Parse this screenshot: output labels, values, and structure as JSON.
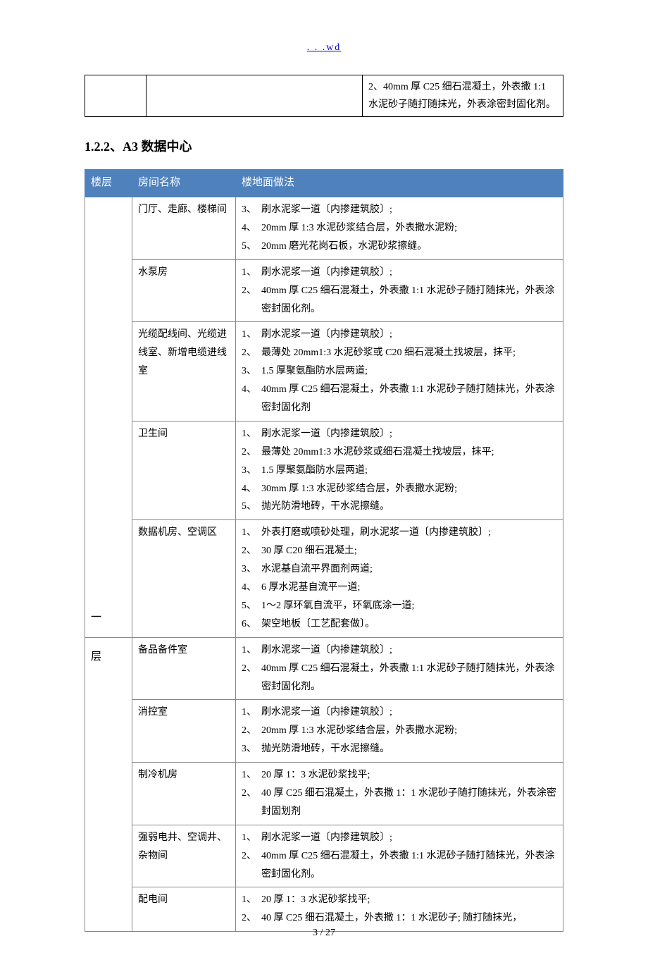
{
  "header_link": ". . .wd",
  "top_table_cell": "2、40mm 厚 C25 细石混凝土，外表撒 1:1 水泥砂子随打随抹光，外表涂密封固化剂。",
  "section_heading": "1.2.2、A3 数据中心",
  "table": {
    "header_bg": "#4f81bd",
    "header_fg": "#ffffff",
    "columns": [
      "楼层",
      "房间名称",
      "楼地面做法"
    ],
    "floor_label_top": "一",
    "floor_label_bottom": "层",
    "rows": [
      {
        "room": "门厅、走廊、楼梯间",
        "items": [
          {
            "n": "3、",
            "t": "刷水泥浆一道〔内掺建筑胶〕;"
          },
          {
            "n": "4、",
            "t": "20mm 厚 1:3 水泥砂浆结合层，外表撒水泥粉;"
          },
          {
            "n": "5、",
            "t": "20mm 磨光花岗石板，水泥砂浆擦缝。"
          }
        ]
      },
      {
        "room": "水泵房",
        "items": [
          {
            "n": "1、",
            "t": "刷水泥浆一道〔内掺建筑胶〕;"
          },
          {
            "n": "2、",
            "t": "40mm 厚 C25 细石混凝土，外表撒 1:1 水泥砂子随打随抹光，外表涂密封固化剂。"
          }
        ]
      },
      {
        "room": "光缆配线间、光缆进线室、新增电缆进线室",
        "items": [
          {
            "n": "1、",
            "t": "刷水泥浆一道〔内掺建筑胶〕;"
          },
          {
            "n": "2、",
            "t": "最薄处 20mm1:3 水泥砂浆或 C20 细石混凝土找坡层，抹平;"
          },
          {
            "n": "3、",
            "t": "1.5 厚聚氨酯防水层两道;"
          },
          {
            "n": "4、",
            "t": "40mm 厚 C25 细石混凝土，外表撒 1:1 水泥砂子随打随抹光，外表涂密封固化剂"
          }
        ]
      },
      {
        "room": "卫生间",
        "items": [
          {
            "n": "1、",
            "t": "刷水泥浆一道〔内掺建筑胶〕;"
          },
          {
            "n": "2、",
            "t": "最薄处 20mm1:3 水泥砂浆或细石混凝土找坡层，抹平;"
          },
          {
            "n": "3、",
            "t": "1.5 厚聚氨酯防水层两道;"
          },
          {
            "n": "4、",
            "t": "30mm 厚 1:3 水泥砂浆结合层，外表撒水泥粉;"
          },
          {
            "n": "5、",
            "t": "抛光防滑地砖，干水泥擦缝。"
          }
        ]
      },
      {
        "room": "数据机房、空调区",
        "items": [
          {
            "n": "1、",
            "t": "外表打磨或喷砂处理，刷水泥浆一道〔内掺建筑胶〕;"
          },
          {
            "n": "2、",
            "t": "30 厚 C20 细石混凝土;"
          },
          {
            "n": "3、",
            "t": "水泥基自流平界面剂两道;"
          },
          {
            "n": "4、",
            "t": "6 厚水泥基自流平一道;"
          },
          {
            "n": "5、",
            "t": "1～2 厚环氧自流平，环氧底涂一道;"
          },
          {
            "n": "6、",
            "t": "架空地板〔工艺配套做〕。"
          }
        ]
      },
      {
        "room": "备品备件室",
        "items": [
          {
            "n": "1、",
            "t": "刷水泥浆一道〔内掺建筑胶〕;"
          },
          {
            "n": "2、",
            "t": "40mm 厚 C25 细石混凝土，外表撒 1:1 水泥砂子随打随抹光，外表涂密封固化剂。"
          }
        ]
      },
      {
        "room": "消控室",
        "items": [
          {
            "n": "1、",
            "t": "刷水泥浆一道〔内掺建筑胶〕;"
          },
          {
            "n": "2、",
            "t": "20mm 厚 1:3 水泥砂浆结合层，外表撒水泥粉;"
          },
          {
            "n": "3、",
            "t": "抛光防滑地砖，干水泥擦缝。"
          }
        ]
      },
      {
        "room": "制冷机房",
        "items": [
          {
            "n": "1、",
            "t": "20 厚 1：3 水泥砂浆找平;"
          },
          {
            "n": "2、",
            "t": "40 厚 C25 细石混凝土，外表撒 1：1 水泥砂子随打随抹光，外表涂密封固划剂"
          }
        ]
      },
      {
        "room": "强弱电井、空调井、杂物间",
        "items": [
          {
            "n": "1、",
            "t": "刷水泥浆一道〔内掺建筑胶〕;"
          },
          {
            "n": "2、",
            "t": "40mm 厚 C25 细石混凝土，外表撒 1:1 水泥砂子随打随抹光，外表涂密封固化剂。"
          }
        ]
      },
      {
        "room": "配电间",
        "items": [
          {
            "n": "1、",
            "t": "20 厚 1：3 水泥砂浆找平;"
          },
          {
            "n": "2、",
            "t": "40 厚 C25 细石混凝土，外表撒 1：1 水泥砂子; 随打随抹光，"
          }
        ]
      }
    ]
  },
  "page_number": "3 / 27"
}
